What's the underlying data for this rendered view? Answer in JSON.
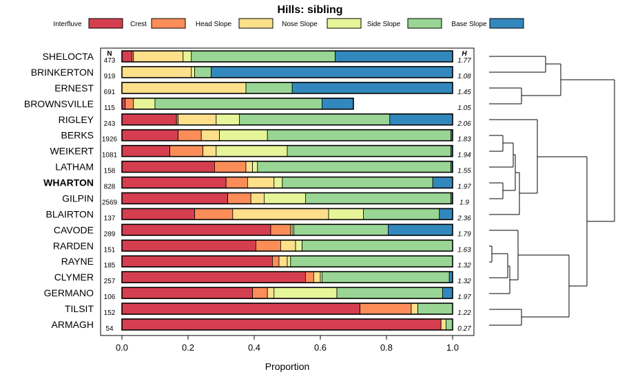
{
  "chart_data": {
    "type": "bar",
    "orientation": "horizontal-stacked",
    "title": "Hills: sibling",
    "xlabel": "Proportion",
    "xlim": [
      0,
      1
    ],
    "x_ticks": [
      0.0,
      0.2,
      0.4,
      0.6,
      0.8,
      1.0
    ],
    "x_tick_labels": [
      "0.0",
      "0.2",
      "0.4",
      "0.6",
      "0.8",
      "1.0"
    ],
    "n_header": "N",
    "h_header": "H",
    "highlight": "WHARTON",
    "legend_position": "top",
    "series": [
      {
        "name": "Interfluve",
        "color": "#d53e4f"
      },
      {
        "name": "Crest",
        "color": "#fc8d59"
      },
      {
        "name": "Head Slope",
        "color": "#fee08b"
      },
      {
        "name": "Nose Slope",
        "color": "#e6f598"
      },
      {
        "name": "Side Slope",
        "color": "#99d594"
      },
      {
        "name": "Base Slope",
        "color": "#3288bd"
      }
    ],
    "categories": [
      "SHELOCTA",
      "BRINKERTON",
      "ERNEST",
      "BROWNSVILLE",
      "RIGLEY",
      "BERKS",
      "WEIKERT",
      "LATHAM",
      "WHARTON",
      "GILPIN",
      "BLAIRTON",
      "CAVODE",
      "RARDEN",
      "RAYNE",
      "CLYMER",
      "GERMANO",
      "TILSIT",
      "ARMAGH"
    ],
    "n_values": [
      "473",
      "919",
      "691",
      "115",
      "243",
      "1926",
      "1081",
      "158",
      "828",
      "2569",
      "137",
      "289",
      "151",
      "185",
      "257",
      "106",
      "152",
      "54"
    ],
    "h_values": [
      "1.77",
      "1.08",
      "1.45",
      "1.05",
      "2.06",
      "1.83",
      "1.94",
      "1.55",
      "1.97",
      "1.9",
      "2.36",
      "1.79",
      "1.63",
      "1.32",
      "1.32",
      "1.97",
      "1.22",
      "0.27"
    ],
    "proportions": [
      [
        0.03,
        0.005,
        0.15,
        0.025,
        0.435,
        0.355
      ],
      [
        0.0,
        0.0,
        0.21,
        0.01,
        0.05,
        0.73
      ],
      [
        0.0,
        0.0,
        0.375,
        0.0,
        0.14,
        0.485
      ],
      [
        0.01,
        0.025,
        0.0,
        0.065,
        0.505,
        0.095
      ],
      [
        0.165,
        0.005,
        0.115,
        0.07,
        0.455,
        0.19
      ],
      [
        0.17,
        0.07,
        0.055,
        0.145,
        0.555,
        0.005
      ],
      [
        0.145,
        0.1,
        0.04,
        0.215,
        0.495,
        0.005
      ],
      [
        0.28,
        0.095,
        0.02,
        0.015,
        0.585,
        0.005
      ],
      [
        0.315,
        0.065,
        0.08,
        0.025,
        0.455,
        0.06
      ],
      [
        0.32,
        0.07,
        0.04,
        0.125,
        0.44,
        0.005
      ],
      [
        0.22,
        0.115,
        0.29,
        0.105,
        0.23,
        0.04
      ],
      [
        0.45,
        0.06,
        0.005,
        0.005,
        0.285,
        0.195
      ],
      [
        0.405,
        0.075,
        0.045,
        0.02,
        0.455,
        0.0
      ],
      [
        0.455,
        0.02,
        0.025,
        0.01,
        0.49,
        0.0
      ],
      [
        0.555,
        0.025,
        0.02,
        0.005,
        0.385,
        0.01
      ],
      [
        0.395,
        0.045,
        0.02,
        0.19,
        0.32,
        0.03
      ],
      [
        0.72,
        0.155,
        0.02,
        0.0,
        0.105,
        0.0
      ],
      [
        0.965,
        0.0,
        0.015,
        0.0,
        0.02,
        0.0
      ]
    ]
  }
}
